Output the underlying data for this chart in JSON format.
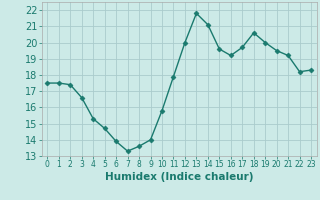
{
  "x": [
    0,
    1,
    2,
    3,
    4,
    5,
    6,
    7,
    8,
    9,
    10,
    11,
    12,
    13,
    14,
    15,
    16,
    17,
    18,
    19,
    20,
    21,
    22,
    23
  ],
  "y": [
    17.5,
    17.5,
    17.4,
    16.6,
    15.3,
    14.7,
    13.9,
    13.3,
    13.6,
    14.0,
    15.8,
    17.9,
    20.0,
    21.8,
    21.1,
    19.6,
    19.2,
    19.7,
    20.6,
    20.0,
    19.5,
    19.2,
    18.2,
    18.3
  ],
  "line_color": "#1a7a6e",
  "marker": "D",
  "marker_size": 2.5,
  "bg_color": "#cceae7",
  "grid_color": "#aacccc",
  "xlabel": "Humidex (Indice chaleur)",
  "ylim": [
    13,
    22.5
  ],
  "xlim": [
    -0.5,
    23.5
  ],
  "yticks": [
    13,
    14,
    15,
    16,
    17,
    18,
    19,
    20,
    21,
    22
  ],
  "xticks": [
    0,
    1,
    2,
    3,
    4,
    5,
    6,
    7,
    8,
    9,
    10,
    11,
    12,
    13,
    14,
    15,
    16,
    17,
    18,
    19,
    20,
    21,
    22,
    23
  ],
  "xlabel_fontsize": 7.5,
  "ytick_fontsize": 7,
  "xtick_fontsize": 5.5,
  "line_width": 1.0
}
